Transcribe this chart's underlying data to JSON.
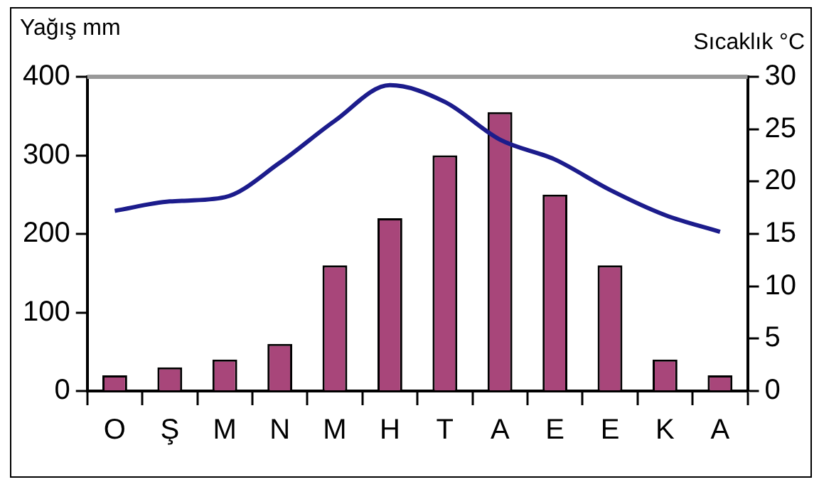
{
  "chart_data": {
    "type": "bar",
    "ylabel": "Yağış mm",
    "y2label": "Sıcaklık °C",
    "categories": [
      "O",
      "Ş",
      "M",
      "N",
      "M",
      "H",
      "T",
      "A",
      "E",
      "E",
      "K",
      "A"
    ],
    "series": [
      {
        "color": "#a8467a",
        "values": [
          20,
          30,
          40,
          60,
          160,
          220,
          300,
          355,
          250,
          160,
          40,
          20
        ]
      },
      {
        "type": "line",
        "axis": "y2",
        "color": "#1c1c8c",
        "values": [
          17.2,
          18.1,
          18.5,
          21.8,
          25.8,
          29.2,
          27.6,
          24.0,
          22.1,
          19.2,
          16.8,
          15.2
        ]
      }
    ],
    "ylim": [
      0,
      400
    ],
    "yticks": [
      0,
      100,
      200,
      300,
      400
    ],
    "y2lim": [
      0,
      30
    ],
    "y2ticks": [
      0,
      5,
      10,
      15,
      20,
      25,
      30
    ],
    "grid": false,
    "legend": false,
    "marker": "none",
    "line_style": "solid"
  }
}
